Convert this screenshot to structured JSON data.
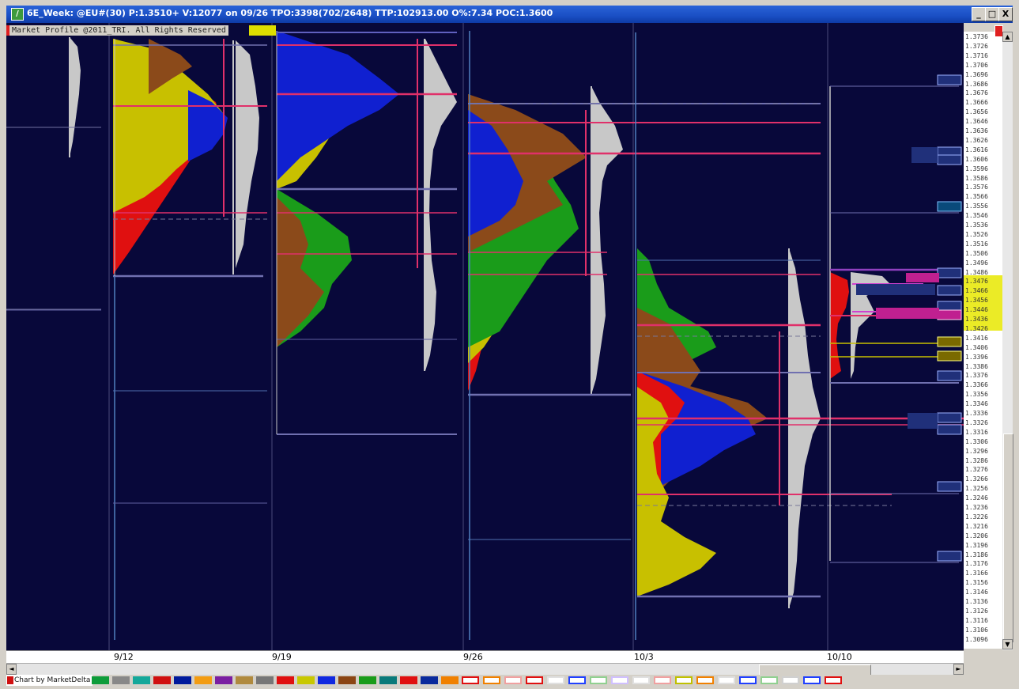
{
  "window": {
    "title": "6E_Week: @EU#(30) P:1.3510+ V:12077 on 09/26 TPO:3398(702/2648) TTP:102913.00 O%:7.34 POC:1.3600",
    "minimize": "_",
    "restore": "□",
    "close": "X"
  },
  "profile_label": "Market Profile @2011_TRI. All Rights Reserved",
  "price_axis": {
    "ticks": [
      "1.3736",
      "1.3726",
      "1.3716",
      "1.3706",
      "1.3696",
      "1.3686",
      "1.3676",
      "1.3666",
      "1.3656",
      "1.3646",
      "1.3636",
      "1.3626",
      "1.3616",
      "1.3606",
      "1.3596",
      "1.3586",
      "1.3576",
      "1.3566",
      "1.3556",
      "1.3546",
      "1.3536",
      "1.3526",
      "1.3516",
      "1.3506",
      "1.3496",
      "1.3486",
      "1.3476",
      "1.3466",
      "1.3456",
      "1.3446",
      "1.3436",
      "1.3426",
      "1.3416",
      "1.3406",
      "1.3396",
      "1.3386",
      "1.3376",
      "1.3366",
      "1.3356",
      "1.3346",
      "1.3336",
      "1.3326",
      "1.3316",
      "1.3306",
      "1.3296",
      "1.3286",
      "1.3276",
      "1.3266",
      "1.3256",
      "1.3246",
      "1.3236",
      "1.3226",
      "1.3216",
      "1.3206",
      "1.3196",
      "1.3186",
      "1.3176",
      "1.3166",
      "1.3156",
      "1.3146",
      "1.3136",
      "1.3126",
      "1.3116",
      "1.3106",
      "1.3096"
    ]
  },
  "dates": [
    "9/12",
    "9/19",
    "9/26",
    "10/3",
    "10/10"
  ],
  "status": {
    "credit": "Chart by MarketDelta",
    "palette": [
      "#0e9c3a",
      "#888888",
      "#15a89a",
      "#d01010",
      "#001a9c",
      "#f39c12",
      "#7b1fa2",
      "#b08a3e",
      "#777777",
      "#e01010",
      "#c8c800",
      "#1028e0",
      "#8b4513",
      "#1a9c1a",
      "#0a7a7a",
      "#e01010",
      "#0a2a9c",
      "#f08000"
    ],
    "outlined": [
      "#e01010",
      "#f08000",
      "#f0a0a0",
      "#e01010",
      "#e0e0e0",
      "#2040ff",
      "#90d090",
      "#d0c0ff",
      "#e0e0e0",
      "#f0a0a0",
      "#c0c000",
      "#f08000",
      "#e0e0e0",
      "#2040ff",
      "#90d090",
      "#d0d0d0",
      "#2040ff",
      "#e01010"
    ]
  },
  "chart_data": {
    "type": "market-profile",
    "instrument": "@EU#",
    "price_range": [
      1.3096,
      1.3736
    ],
    "sessions": [
      {
        "date": "9/12"
      },
      {
        "date": "9/19"
      },
      {
        "date": "9/26"
      },
      {
        "date": "10/3"
      },
      {
        "date": "10/10"
      }
    ]
  }
}
